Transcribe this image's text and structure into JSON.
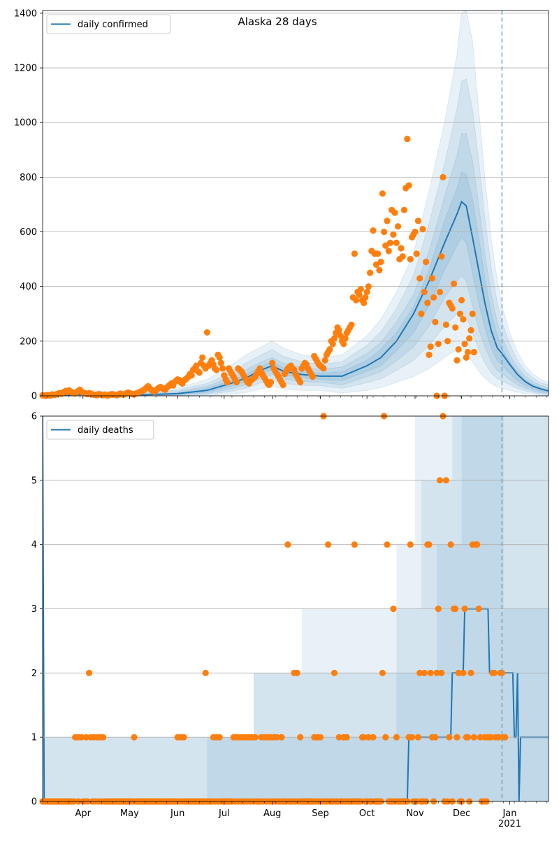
{
  "figure": {
    "title": "Alaska 28 days"
  },
  "chart_data": [
    {
      "type": "line",
      "panel": "top",
      "title": "Alaska 28 days",
      "xlabel": "",
      "ylabel": "",
      "x_range": [
        "2020-03-06",
        "2021-01-26"
      ],
      "ylim": [
        0,
        1410
      ],
      "yticks": [
        0,
        200,
        400,
        600,
        800,
        1000,
        1200,
        1400
      ],
      "grid": "horizontal",
      "legend": {
        "position": "top-left",
        "entries": [
          "daily confirmed"
        ]
      },
      "cutoff_date": "2020-12-27",
      "colors": {
        "line": "#1f77b4",
        "band": "#1f77b4",
        "points": "#ff7f0e",
        "cutoff": "#6a9fc8"
      },
      "series": [
        {
          "name": "daily confirmed",
          "kind": "median-line",
          "points": [
            [
              "2020-03-06",
              0
            ],
            [
              "2020-04-01",
              5
            ],
            [
              "2020-05-01",
              2
            ],
            [
              "2020-06-01",
              8
            ],
            [
              "2020-06-20",
              20
            ],
            [
              "2020-07-05",
              45
            ],
            [
              "2020-07-15",
              65
            ],
            [
              "2020-07-25",
              95
            ],
            [
              "2020-08-01",
              110
            ],
            [
              "2020-08-08",
              90
            ],
            [
              "2020-08-20",
              78
            ],
            [
              "2020-09-01",
              72
            ],
            [
              "2020-09-15",
              72
            ],
            [
              "2020-10-01",
              110
            ],
            [
              "2020-10-10",
              140
            ],
            [
              "2020-10-20",
              200
            ],
            [
              "2020-10-31",
              300
            ],
            [
              "2020-11-10",
              420
            ],
            [
              "2020-11-20",
              560
            ],
            [
              "2020-11-28",
              665
            ],
            [
              "2020-12-01",
              710
            ],
            [
              "2020-12-04",
              695
            ],
            [
              "2020-12-08",
              580
            ],
            [
              "2020-12-12",
              460
            ],
            [
              "2020-12-16",
              340
            ],
            [
              "2020-12-20",
              240
            ],
            [
              "2020-12-24",
              175
            ],
            [
              "2020-12-27",
              155
            ],
            [
              "2021-01-01",
              115
            ],
            [
              "2021-01-06",
              78
            ],
            [
              "2021-01-11",
              52
            ],
            [
              "2021-01-16",
              35
            ],
            [
              "2021-01-21",
              25
            ],
            [
              "2021-01-26",
              18
            ]
          ]
        }
      ],
      "bands": [
        {
          "label": "",
          "upper": [
            0,
            20,
            15,
            30,
            60,
            110,
            150,
            180,
            200,
            175,
            150,
            140,
            150,
            220,
            280,
            380,
            520,
            750,
            1000,
            1250,
            1400,
            1410,
            1300,
            1050,
            800,
            580,
            420,
            330,
            230,
            160,
            110,
            80,
            60,
            50
          ]
        },
        {
          "label": "",
          "upper": [
            0,
            15,
            10,
            22,
            45,
            85,
            120,
            150,
            170,
            145,
            125,
            115,
            125,
            185,
            235,
            320,
            440,
            630,
            850,
            1050,
            1150,
            1160,
            1050,
            860,
            650,
            470,
            340,
            270,
            190,
            130,
            90,
            65,
            48,
            40
          ]
        },
        {
          "label": "",
          "upper": [
            0,
            10,
            7,
            16,
            35,
            68,
            95,
            125,
            140,
            120,
            105,
            97,
            105,
            155,
            195,
            270,
            370,
            530,
            730,
            880,
            960,
            960,
            860,
            700,
            520,
            375,
            270,
            215,
            150,
            105,
            72,
            52,
            38,
            30
          ]
        },
        {
          "label": "",
          "upper": [
            0,
            7,
            4,
            11,
            27,
            55,
            78,
            108,
            125,
            103,
            90,
            83,
            88,
            130,
            170,
            232,
            325,
            460,
            640,
            760,
            820,
            810,
            720,
            580,
            430,
            305,
            220,
            175,
            125,
            87,
            58,
            42,
            30,
            22
          ]
        },
        {
          "label": "",
          "lower": [
            0,
            3,
            0,
            5,
            13,
            35,
            52,
            82,
            95,
            77,
            66,
            61,
            56,
            90,
            110,
            165,
            230,
            330,
            460,
            550,
            580,
            560,
            450,
            340,
            250,
            175,
            128,
            112,
            82,
            55,
            37,
            25,
            16,
            12
          ]
        },
        {
          "label": "",
          "lower": [
            0,
            1,
            0,
            3,
            8,
            25,
            40,
            65,
            78,
            62,
            52,
            50,
            40,
            70,
            88,
            128,
            178,
            255,
            360,
            420,
            440,
            420,
            330,
            245,
            180,
            125,
            92,
            82,
            60,
            40,
            27,
            18,
            11,
            8
          ]
        },
        {
          "label": "",
          "lower": [
            0,
            0,
            0,
            1,
            4,
            16,
            28,
            48,
            60,
            46,
            38,
            37,
            27,
            48,
            62,
            92,
            130,
            185,
            255,
            300,
            310,
            290,
            230,
            170,
            120,
            85,
            62,
            55,
            40,
            27,
            18,
            12,
            7,
            5
          ]
        },
        {
          "label": "",
          "lower": [
            0,
            0,
            0,
            0,
            0,
            6,
            12,
            25,
            35,
            25,
            20,
            20,
            10,
            20,
            30,
            50,
            70,
            100,
            140,
            170,
            180,
            165,
            125,
            90,
            65,
            45,
            32,
            28,
            20,
            13,
            8,
            5,
            2,
            1
          ]
        }
      ],
      "scatter_values": [
        2,
        1,
        0,
        3,
        2,
        1,
        5,
        4,
        3,
        6,
        8,
        10,
        7,
        12,
        15,
        18,
        14,
        20,
        16,
        12,
        10,
        9,
        14,
        18,
        22,
        16,
        12,
        10,
        8,
        6,
        10,
        8,
        5,
        4,
        3,
        2,
        6,
        5,
        3,
        2,
        4,
        2,
        1,
        3,
        5,
        6,
        4,
        3,
        2,
        5,
        8,
        6,
        4,
        7,
        9,
        12,
        10,
        8,
        6,
        5,
        8,
        10,
        12,
        15,
        18,
        20,
        25,
        30,
        35,
        28,
        22,
        18,
        15,
        20,
        25,
        30,
        32,
        28,
        25,
        22,
        30,
        35,
        40,
        45,
        38,
        50,
        55,
        60,
        58,
        50,
        45,
        55,
        60,
        65,
        70,
        80,
        75,
        95,
        100,
        110,
        90,
        85,
        120,
        140,
        110,
        100,
        232,
        110,
        120,
        130,
        115,
        100,
        95,
        150,
        140,
        120,
        100,
        75,
        60,
        50,
        100,
        90,
        80,
        70,
        60,
        50,
        100,
        95,
        90,
        80,
        70,
        60,
        50,
        45,
        55,
        60,
        65,
        70,
        80,
        90,
        100,
        85,
        75,
        65,
        55,
        45,
        40,
        50,
        120,
        100,
        90,
        80,
        70,
        60,
        50,
        40,
        80,
        90,
        100,
        105,
        110,
        100,
        95,
        80,
        70,
        60,
        50,
        100,
        110,
        120,
        115,
        100,
        90,
        80,
        70,
        145,
        135,
        125,
        115,
        110,
        105,
        100,
        130,
        150,
        160,
        170,
        200,
        190,
        210,
        230,
        250,
        240,
        220,
        200,
        190,
        210,
        230,
        240,
        250,
        260,
        360,
        520,
        350,
        380,
        370,
        390,
        350,
        340,
        360,
        380,
        400,
        450,
        530,
        605,
        520,
        480,
        520,
        460,
        490,
        740,
        600,
        550,
        640,
        530,
        560,
        680,
        590,
        670,
        560,
        620,
        500,
        540,
        510,
        680,
        760,
        940,
        770,
        500,
        580,
        590,
        600,
        520,
        640,
        430,
        300,
        610,
        380,
        490,
        340,
        150,
        180,
        430,
        360,
        270,
        0,
        190,
        380,
        510,
        800,
        0,
        260,
        200,
        340,
        330,
        320,
        410,
        250,
        130,
        170,
        300,
        350,
        280,
        190,
        140,
        160,
        210,
        240,
        300,
        160
      ],
      "scatter_start": "2020-03-06"
    },
    {
      "type": "line",
      "panel": "bottom",
      "xlabel": "",
      "ylabel": "",
      "x_range": [
        "2020-03-06",
        "2021-01-26"
      ],
      "ylim": [
        0,
        6
      ],
      "yticks": [
        0,
        1,
        2,
        3,
        4,
        5,
        6
      ],
      "xticks": [
        {
          "date": "2020-04-01",
          "label": "Apr"
        },
        {
          "date": "2020-05-01",
          "label": "May"
        },
        {
          "date": "2020-06-01",
          "label": "Jun"
        },
        {
          "date": "2020-07-01",
          "label": "Jul"
        },
        {
          "date": "2020-08-01",
          "label": "Aug"
        },
        {
          "date": "2020-09-01",
          "label": "Sep"
        },
        {
          "date": "2020-10-01",
          "label": "Oct"
        },
        {
          "date": "2020-11-01",
          "label": "Nov"
        },
        {
          "date": "2020-12-01",
          "label": "Dec"
        },
        {
          "date": "2021-01-01",
          "label": "Jan\n2021"
        }
      ],
      "grid": "horizontal",
      "legend": {
        "position": "top-left",
        "entries": [
          "daily deaths"
        ]
      },
      "cutoff_date": "2020-12-27",
      "series": [
        {
          "name": "daily deaths",
          "kind": "median-line",
          "points": [
            [
              "2020-03-06",
              6
            ],
            [
              "2020-03-07",
              0
            ],
            [
              "2020-10-27",
              0
            ],
            [
              "2020-10-28",
              1
            ],
            [
              "2020-11-24",
              1
            ],
            [
              "2020-11-25",
              2
            ],
            [
              "2020-12-02",
              2
            ],
            [
              "2020-12-03",
              3
            ],
            [
              "2020-12-18",
              3
            ],
            [
              "2020-12-19",
              2
            ],
            [
              "2021-01-03",
              2
            ],
            [
              "2021-01-04",
              1
            ],
            [
              "2021-01-05",
              1
            ],
            [
              "2021-01-06",
              2
            ],
            [
              "2021-01-07",
              0
            ],
            [
              "2021-01-08",
              1
            ],
            [
              "2021-01-26",
              1
            ]
          ]
        }
      ],
      "bands": [
        {
          "label": "",
          "segments": [
            [
              "2020-03-06",
              "2020-07-20",
              1
            ],
            [
              "2020-07-20",
              "2020-08-20",
              2
            ],
            [
              "2020-08-20",
              "2020-10-20",
              3
            ],
            [
              "2020-10-20",
              "2020-11-01",
              4
            ],
            [
              "2020-11-01",
              "2021-01-26",
              6
            ]
          ]
        },
        {
          "label": "",
          "segments": [
            [
              "2020-03-06",
              "2020-07-20",
              1
            ],
            [
              "2020-07-20",
              "2020-10-20",
              2
            ],
            [
              "2020-10-20",
              "2020-11-05",
              3
            ],
            [
              "2020-11-05",
              "2020-11-25",
              5
            ],
            [
              "2020-11-25",
              "2021-01-26",
              6
            ]
          ]
        },
        {
          "label": "",
          "segments": [
            [
              "2020-03-06",
              "2020-06-20",
              0
            ],
            [
              "2020-06-20",
              "2020-10-20",
              1
            ],
            [
              "2020-10-20",
              "2020-11-15",
              2
            ],
            [
              "2020-11-15",
              "2020-12-01",
              4
            ],
            [
              "2020-12-01",
              "2020-12-28",
              6
            ],
            [
              "2020-12-28",
              "2021-01-26",
              3
            ]
          ]
        }
      ],
      "scatter_values": [
        0,
        0,
        0,
        0,
        0,
        0,
        0,
        0,
        0,
        0,
        0,
        0,
        0,
        0,
        0,
        0,
        0,
        0,
        0,
        0,
        0,
        1,
        1,
        0,
        1,
        1,
        0,
        0,
        1,
        0,
        2,
        1,
        0,
        1,
        0,
        1,
        0,
        1,
        0,
        1,
        0,
        0,
        0,
        0,
        0,
        0,
        0,
        0,
        0,
        0,
        0,
        0,
        0,
        0,
        0,
        0,
        0,
        0,
        0,
        1,
        0,
        0,
        0,
        0,
        0,
        0,
        0,
        0,
        0,
        0,
        0,
        0,
        0,
        0,
        0,
        0,
        0,
        0,
        0,
        0,
        0,
        0,
        0,
        0,
        0,
        0,
        0,
        1,
        0,
        1,
        0,
        1,
        0,
        0,
        0,
        0,
        0,
        0,
        0,
        0,
        0,
        0,
        0,
        0,
        0,
        2,
        0,
        0,
        0,
        0,
        1,
        0,
        1,
        0,
        1,
        0,
        0,
        0,
        0,
        0,
        0,
        0,
        0,
        1,
        0,
        1,
        0,
        1,
        0,
        1,
        0,
        1,
        0,
        1,
        0,
        1,
        0,
        1,
        0,
        0,
        0,
        1,
        0,
        1,
        0,
        1,
        0,
        1,
        0,
        1,
        0,
        1,
        0,
        0,
        1,
        0,
        0,
        0,
        4,
        0,
        0,
        0,
        2,
        0,
        2,
        0,
        1,
        0,
        0,
        0,
        0,
        0,
        0,
        0,
        0,
        1,
        0,
        1,
        0,
        1,
        0,
        6,
        0,
        0,
        4,
        0,
        0,
        0,
        2,
        0,
        0,
        1,
        0,
        0,
        1,
        0,
        1,
        0,
        0,
        0,
        0,
        4,
        0,
        0,
        0,
        0,
        1,
        1,
        0,
        0,
        1,
        0,
        0,
        1,
        0,
        0,
        0,
        0,
        0,
        2,
        6,
        1,
        4,
        0,
        0,
        0,
        3,
        0,
        1,
        0,
        0,
        0,
        0,
        0,
        0,
        0,
        1,
        4,
        1,
        0,
        0,
        0,
        1,
        2,
        0,
        0,
        2,
        0,
        4,
        4,
        2,
        1,
        0,
        1,
        2,
        3,
        5,
        2,
        6,
        0,
        5,
        0,
        1,
        4,
        0,
        3,
        3,
        1,
        2,
        0,
        0,
        2,
        3,
        1,
        1,
        0,
        2,
        4,
        1,
        4,
        4,
        3,
        1,
        0,
        0,
        1,
        0,
        1,
        1,
        1,
        2,
        2,
        1,
        1,
        1,
        2,
        2,
        1,
        1
      ],
      "scatter_start": "2020-03-06"
    }
  ]
}
